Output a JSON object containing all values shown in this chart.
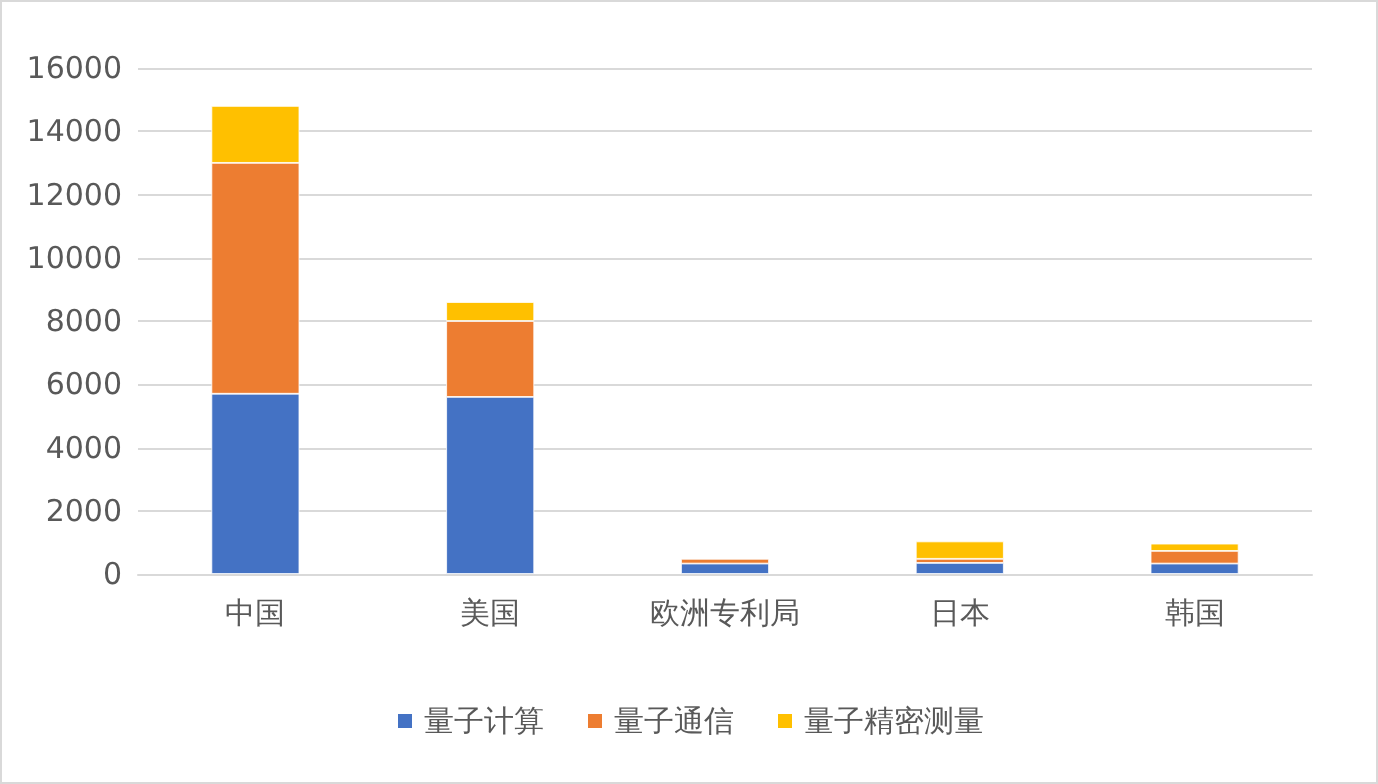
{
  "chart_data": {
    "type": "bar",
    "stacked": true,
    "categories": [
      "中国",
      "美国",
      "欧洲专利局",
      "日本",
      "韩国"
    ],
    "series": [
      {
        "name": "量子计算",
        "color": "#4472c4",
        "values": [
          5700,
          5600,
          330,
          350,
          330
        ]
      },
      {
        "name": "量子通信",
        "color": "#ed7d31",
        "values": [
          7300,
          2400,
          150,
          130,
          400
        ]
      },
      {
        "name": "量子精密测量",
        "color": "#ffc000",
        "values": [
          1800,
          600,
          null,
          550,
          230
        ]
      }
    ],
    "ylim": [
      0,
      16000
    ],
    "yticks": [
      0,
      2000,
      4000,
      6000,
      8000,
      10000,
      12000,
      14000,
      16000
    ],
    "grid": "y",
    "legend": "bottom"
  }
}
